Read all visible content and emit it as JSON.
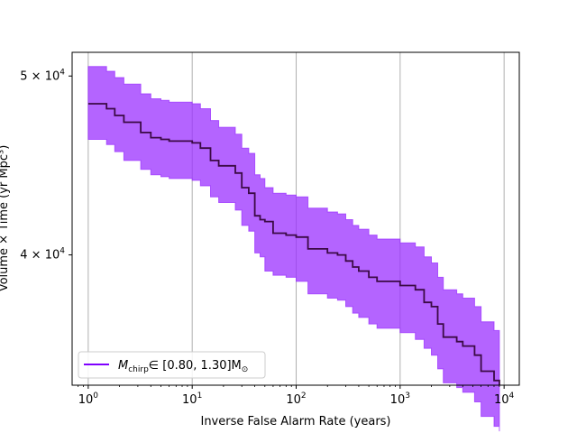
{
  "chart_data": {
    "type": "line",
    "title": "",
    "xlabel": "Inverse False Alarm Rate (years)",
    "ylabel": "Volume × Time (yr Mpc³)",
    "xscale": "log",
    "yscale": "log",
    "xlim": [
      0.7,
      14000
    ],
    "ylim": [
      34000,
      51500
    ],
    "x_ticks": [
      {
        "value": 1,
        "base": "10",
        "exp": "0"
      },
      {
        "value": 10,
        "base": "10",
        "exp": "1"
      },
      {
        "value": 100,
        "base": "10",
        "exp": "2"
      },
      {
        "value": 1000,
        "base": "10",
        "exp": "3"
      },
      {
        "value": 10000,
        "base": "10",
        "exp": "4"
      }
    ],
    "y_ticks": [
      {
        "value": 40000,
        "mant": "4",
        "base": "10",
        "exp": "4"
      },
      {
        "value": 50000,
        "mant": "5",
        "base": "10",
        "exp": "4"
      }
    ],
    "grid": "x-major",
    "legend": {
      "position": "lower-left",
      "label_main": "M",
      "label_sub": "chirp",
      "label_range": "∈ [0.80, 1.30]M",
      "label_sun": "⊙"
    },
    "colors": {
      "band": "#9b30ff",
      "band_alpha": 0.75,
      "line": "#3b0a45",
      "legend_line": "#7f00ff"
    },
    "series": [
      {
        "x": [
          1,
          1.2,
          1.5,
          1.8,
          2.2,
          2.8,
          3.2,
          4,
          5,
          6,
          8,
          10,
          12,
          15,
          18,
          22,
          26,
          30,
          35,
          40,
          45,
          50,
          60,
          70,
          80,
          100,
          130,
          160,
          200,
          250,
          300,
          350,
          400,
          500,
          600,
          700,
          800,
          1000,
          1200,
          1400,
          1700,
          2000,
          2300,
          2600,
          3000,
          3500,
          4000,
          4600,
          5200,
          6000,
          7000,
          8000,
          9000
        ],
        "y": [
          48300,
          48300,
          48000,
          47600,
          47200,
          47200,
          46600,
          46300,
          46200,
          46100,
          46100,
          46000,
          45700,
          45000,
          44700,
          44700,
          44300,
          43500,
          43200,
          42000,
          41800,
          41700,
          41100,
          41100,
          41000,
          40900,
          40300,
          40300,
          40100,
          40000,
          39700,
          39400,
          39200,
          38900,
          38700,
          38700,
          38700,
          38500,
          38500,
          38300,
          37700,
          37500,
          36700,
          36100,
          36100,
          35900,
          35700,
          35700,
          35300,
          34600,
          34600,
          34200,
          34000
        ],
        "y_lower": [
          46200,
          46200,
          45900,
          45500,
          45000,
          45000,
          44500,
          44200,
          44100,
          44000,
          44000,
          43900,
          43600,
          43000,
          42700,
          42700,
          42300,
          41500,
          41200,
          40100,
          39900,
          39200,
          39000,
          39000,
          38900,
          38700,
          38100,
          38100,
          37900,
          37800,
          37500,
          37200,
          37000,
          36700,
          36500,
          36500,
          36500,
          36300,
          36300,
          36000,
          35600,
          35300,
          34700,
          34100,
          34100,
          33900,
          33700,
          33700,
          33300,
          32700,
          32700,
          32300,
          32100
        ],
        "y_upper": [
          50600,
          50600,
          50300,
          49900,
          49500,
          49500,
          48900,
          48600,
          48500,
          48400,
          48400,
          48300,
          48000,
          47300,
          46900,
          46900,
          46500,
          45700,
          45400,
          44200,
          44000,
          43500,
          43200,
          43200,
          43100,
          43000,
          42400,
          42400,
          42200,
          42100,
          41800,
          41500,
          41300,
          41000,
          40800,
          40800,
          40800,
          40600,
          40600,
          40400,
          39900,
          39600,
          38900,
          38300,
          38300,
          38100,
          37900,
          37900,
          37500,
          36800,
          36800,
          36400,
          36200
        ]
      }
    ]
  }
}
